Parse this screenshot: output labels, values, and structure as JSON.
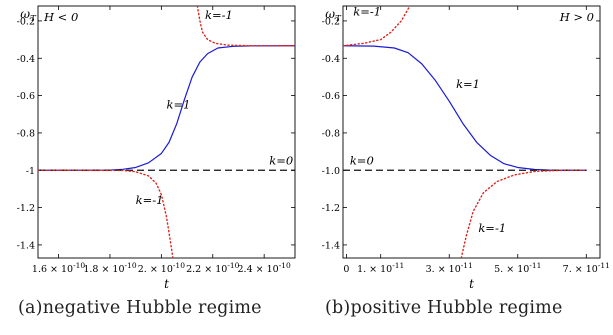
{
  "chart_data": [
    {
      "type": "line",
      "panel": "a",
      "ylabel": "ω_T",
      "xlabel": "t",
      "regime_label": "H < 0",
      "xlim": [
        1.52e-10,
        2.52e-10
      ],
      "ylim": [
        -1.47,
        -0.12
      ],
      "x_ticks": [
        {
          "value": 1.6e-10,
          "mant": "1.6",
          "exp": "-10"
        },
        {
          "value": 1.8e-10,
          "mant": "1.8",
          "exp": "-10"
        },
        {
          "value": 2e-10,
          "mant": "2.",
          "exp": "-10"
        },
        {
          "value": 2.2e-10,
          "mant": "2.2",
          "exp": "-10"
        },
        {
          "value": 2.4e-10,
          "mant": "2.4",
          "exp": "-10"
        }
      ],
      "y_ticks": [
        {
          "value": -0.2,
          "label": "-0.2"
        },
        {
          "value": -0.4,
          "label": "-0.4"
        },
        {
          "value": -0.6,
          "label": "-0.6"
        },
        {
          "value": -0.8,
          "label": "-0.8"
        },
        {
          "value": -1.0,
          "label": "-1"
        },
        {
          "value": -1.2,
          "label": "-1.2"
        },
        {
          "value": -1.4,
          "label": "-1.4"
        }
      ],
      "series": [
        {
          "name": "k=1",
          "style": "solid",
          "color": "#1a1ad6",
          "points": [
            [
              1.52e-10,
              -1.0
            ],
            [
              1.8e-10,
              -0.999
            ],
            [
              1.85e-10,
              -0.995
            ],
            [
              1.9e-10,
              -0.985
            ],
            [
              1.95e-10,
              -0.96
            ],
            [
              2e-10,
              -0.91
            ],
            [
              2.03e-10,
              -0.85
            ],
            [
              2.06e-10,
              -0.75
            ],
            [
              2.09e-10,
              -0.62
            ],
            [
              2.12e-10,
              -0.5
            ],
            [
              2.15e-10,
              -0.42
            ],
            [
              2.18e-10,
              -0.375
            ],
            [
              2.22e-10,
              -0.345
            ],
            [
              2.28e-10,
              -0.336
            ],
            [
              2.35e-10,
              -0.334
            ],
            [
              2.52e-10,
              -0.333
            ]
          ]
        },
        {
          "name": "k=0",
          "style": "dashed",
          "color": "#111111",
          "points": [
            [
              1.52e-10,
              -1.0
            ],
            [
              2.52e-10,
              -1.0
            ]
          ]
        },
        {
          "name": "k=-1",
          "style": "dotted",
          "color": "#e0241c",
          "points": [
            [
              1.52e-10,
              -1.0
            ],
            [
              1.85e-10,
              -1.001
            ],
            [
              1.9e-10,
              -1.008
            ],
            [
              1.95e-10,
              -1.03
            ],
            [
              1.98e-10,
              -1.07
            ],
            [
              2e-10,
              -1.13
            ],
            [
              2.02e-10,
              -1.25
            ],
            [
              2.035e-10,
              -1.38
            ],
            [
              2.045e-10,
              -1.47
            ]
          ]
        },
        {
          "name": "k=-1",
          "style": "dotted",
          "color": "#e0241c",
          "points": [
            [
              2.14e-10,
              -0.12
            ],
            [
              2.15e-10,
              -0.2
            ],
            [
              2.16e-10,
              -0.26
            ],
            [
              2.18e-10,
              -0.3
            ],
            [
              2.21e-10,
              -0.32
            ],
            [
              2.26e-10,
              -0.33
            ],
            [
              2.35e-10,
              -0.333
            ],
            [
              2.52e-10,
              -0.333
            ]
          ]
        }
      ],
      "annotations": [
        {
          "text": "k=1",
          "x": 2.02e-10,
          "y": -0.67
        },
        {
          "text": "k=0",
          "x": 2.42e-10,
          "y": -0.97
        },
        {
          "text": "k=-1",
          "x": 1.9e-10,
          "y": -1.18
        },
        {
          "text": "k=-1",
          "x": 2.17e-10,
          "y": -0.19
        }
      ]
    },
    {
      "type": "line",
      "panel": "b",
      "ylabel": "ω_T",
      "xlabel": "t",
      "regime_label": "H > 0",
      "xlim": [
        -1e-12,
        7.4e-11
      ],
      "ylim": [
        -1.47,
        -0.12
      ],
      "x_ticks": [
        {
          "value": 0,
          "mant": "0",
          "exp": ""
        },
        {
          "value": 1e-11,
          "mant": "1.",
          "exp": "-11"
        },
        {
          "value": 3e-11,
          "mant": "3.",
          "exp": "-11"
        },
        {
          "value": 5e-11,
          "mant": "5.",
          "exp": "-11"
        },
        {
          "value": 7e-11,
          "mant": "7.",
          "exp": "-11"
        }
      ],
      "y_ticks": [
        {
          "value": -0.2,
          "label": "-0.2"
        },
        {
          "value": -0.4,
          "label": "-0.4"
        },
        {
          "value": -0.6,
          "label": "-0.6"
        },
        {
          "value": -0.8,
          "label": "-0.8"
        },
        {
          "value": -1.0,
          "label": "-1.0"
        },
        {
          "value": -1.2,
          "label": "-1.2"
        },
        {
          "value": -1.4,
          "label": "-1.4"
        }
      ],
      "series": [
        {
          "name": "k=1",
          "style": "solid",
          "color": "#1a1ad6",
          "points": [
            [
              -1e-12,
              -0.333
            ],
            [
              8e-12,
              -0.335
            ],
            [
              1.4e-11,
              -0.345
            ],
            [
              1.8e-11,
              -0.37
            ],
            [
              2.2e-11,
              -0.43
            ],
            [
              2.6e-11,
              -0.52
            ],
            [
              3e-11,
              -0.63
            ],
            [
              3.4e-11,
              -0.75
            ],
            [
              3.8e-11,
              -0.85
            ],
            [
              4.2e-11,
              -0.92
            ],
            [
              4.6e-11,
              -0.965
            ],
            [
              5e-11,
              -0.985
            ],
            [
              5.5e-11,
              -0.996
            ],
            [
              6e-11,
              -1.0
            ],
            [
              7e-11,
              -1.0
            ]
          ]
        },
        {
          "name": "k=0",
          "style": "dashed",
          "color": "#111111",
          "points": [
            [
              -1e-12,
              -1.0
            ],
            [
              7e-11,
              -1.0
            ]
          ]
        },
        {
          "name": "k=-1",
          "style": "dotted",
          "color": "#e0241c",
          "points": [
            [
              -1e-12,
              -0.333
            ],
            [
              5e-12,
              -0.32
            ],
            [
              1e-11,
              -0.3
            ],
            [
              1.3e-11,
              -0.26
            ],
            [
              1.6e-11,
              -0.2
            ],
            [
              1.85e-11,
              -0.12
            ]
          ]
        },
        {
          "name": "k=-1",
          "style": "dotted",
          "color": "#e0241c",
          "points": [
            [
              3.35e-11,
              -1.47
            ],
            [
              3.5e-11,
              -1.35
            ],
            [
              3.7e-11,
              -1.22
            ],
            [
              4e-11,
              -1.12
            ],
            [
              4.4e-11,
              -1.06
            ],
            [
              4.9e-11,
              -1.025
            ],
            [
              5.5e-11,
              -1.006
            ],
            [
              6.2e-11,
              -1.001
            ],
            [
              7e-11,
              -1.0
            ]
          ]
        }
      ],
      "annotations": [
        {
          "text": "k=-1",
          "x": 2e-12,
          "y": -0.17
        },
        {
          "text": "k=1",
          "x": 3.2e-11,
          "y": -0.56
        },
        {
          "text": "k=0",
          "x": 1e-12,
          "y": -0.97
        },
        {
          "text": "k=-1",
          "x": 3.85e-11,
          "y": -1.33
        }
      ]
    }
  ],
  "captions": {
    "a": "(a)negative Hubble regime",
    "b": "(b)positive Hubble regime"
  }
}
